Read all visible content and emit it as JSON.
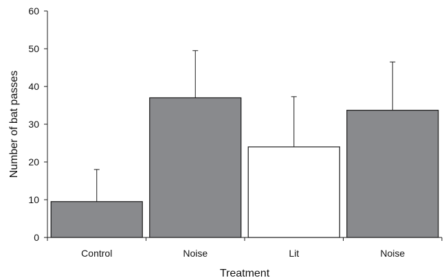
{
  "chart_data": {
    "type": "bar",
    "xlabel": "Treatment",
    "ylabel": "Number of bat passes",
    "ylim": [
      0,
      60
    ],
    "yticks": [
      0,
      10,
      20,
      30,
      40,
      50,
      60
    ],
    "categories": [
      "Control",
      "Noise",
      "Lit",
      "Noise"
    ],
    "values": [
      9.5,
      37,
      24,
      33.7
    ],
    "error_upper": [
      18,
      49.5,
      37.3,
      46.5
    ],
    "bar_colors": [
      "#898a8d",
      "#898a8d",
      "#ffffff",
      "#898a8d"
    ],
    "edge_color": "#1a1a1a",
    "grid": false,
    "legend": "none"
  }
}
